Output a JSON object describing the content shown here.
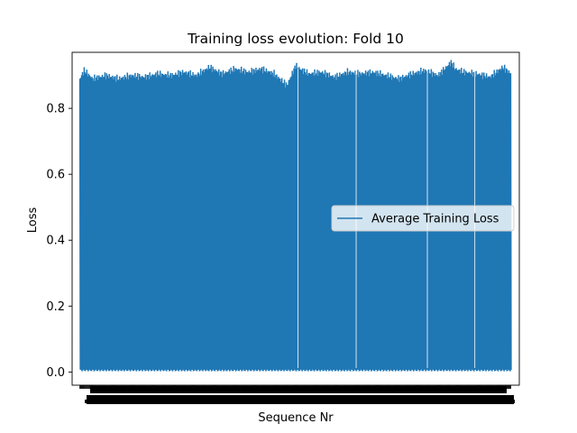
{
  "chart_data": {
    "type": "line",
    "title": "Training loss evolution: Fold 10",
    "xlabel": "Sequence Nr",
    "ylabel": "Loss",
    "ylim": [
      -0.04,
      0.97
    ],
    "xlim": [
      -18,
      1018
    ],
    "yticks": [
      0.0,
      0.2,
      0.4,
      0.6,
      0.8
    ],
    "ytick_labels": [
      "0.0",
      "0.2",
      "0.4",
      "0.6",
      "0.8"
    ],
    "grid": false,
    "legend_position": "center-right",
    "series": [
      {
        "name": "Average Training Loss",
        "color": "#1f77b4",
        "n_points": 1000,
        "low_value": 0.005,
        "high_envelope_x": [
          0,
          10,
          30,
          60,
          90,
          120,
          150,
          180,
          210,
          240,
          270,
          300,
          330,
          360,
          390,
          420,
          450,
          480,
          500,
          510,
          530,
          560,
          590,
          620,
          650,
          680,
          710,
          740,
          770,
          800,
          830,
          860,
          870,
          890,
          920,
          950,
          980,
          990,
          999
        ],
        "high_envelope_y": [
          0.89,
          0.915,
          0.89,
          0.9,
          0.89,
          0.9,
          0.895,
          0.905,
          0.9,
          0.91,
          0.9,
          0.925,
          0.905,
          0.92,
          0.91,
          0.92,
          0.905,
          0.87,
          0.93,
          0.92,
          0.905,
          0.91,
          0.895,
          0.91,
          0.905,
          0.91,
          0.9,
          0.89,
          0.905,
          0.915,
          0.9,
          0.94,
          0.92,
          0.91,
          0.905,
          0.895,
          0.925,
          0.915,
          0.905
        ],
        "gaps_x": [
          505,
          640,
          805,
          915
        ]
      }
    ]
  }
}
